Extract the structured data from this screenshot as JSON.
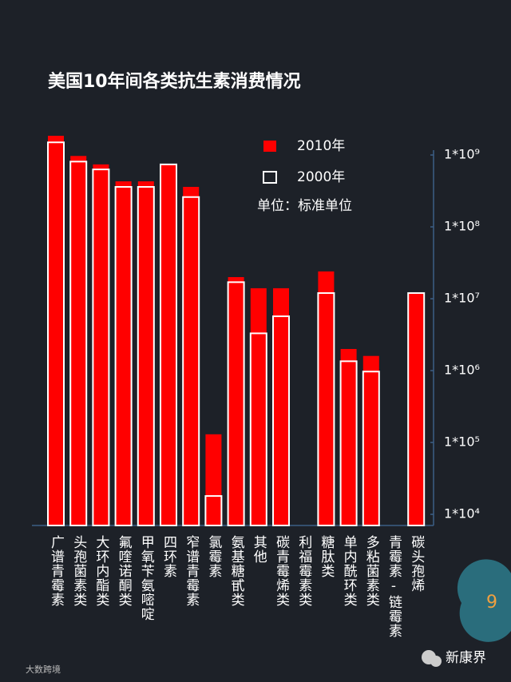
{
  "chart_data": {
    "type": "bar",
    "title": "美国10年间各类抗生素消费情况",
    "annotation": "单位：标准单位",
    "categories": [
      "广谱青霉素",
      "头孢菌素类",
      "大环内酯类",
      "氟喹诺酮类",
      "甲氧苄氨嘧啶",
      "四环素",
      "窄谱青霉素",
      "氯霉素",
      "氨基糖甙类",
      "其他",
      "碳青霉烯类",
      "利福霉素类",
      "糖肽类",
      "单内酰环类",
      "多粘菌素类",
      "青霉素-链霉素",
      "碳头孢烯"
    ],
    "series": [
      {
        "name": "2010年",
        "color": "#ff0000",
        "values": [
          1850000000,
          970000000,
          740000000,
          430000000,
          430000000,
          740000000,
          360000000,
          130000,
          20000000,
          14000000,
          14000000,
          null,
          24000000,
          2000000,
          1600000,
          null,
          12000000
        ]
      },
      {
        "name": "2000年",
        "color": "#ff0000",
        "stroke": "#ffffff",
        "values": [
          1500000000,
          810000000,
          630000000,
          360000000,
          360000000,
          740000000,
          260000000,
          18000,
          17000000,
          3300000,
          5700000,
          null,
          12000000,
          1350000,
          970000,
          null,
          12000000
        ]
      }
    ],
    "log_scale": true,
    "ylim": [
      7000,
      2000000000
    ],
    "yticks": [
      {
        "value": 10000,
        "label": "1*10⁴"
      },
      {
        "value": 100000,
        "label": "1*10⁵"
      },
      {
        "value": 1000000,
        "label": "1*10⁶"
      },
      {
        "value": 10000000,
        "label": "1*10⁷"
      },
      {
        "value": 100000000,
        "label": "1*10⁸"
      },
      {
        "value": 1000000000,
        "label": "1*10⁹"
      }
    ]
  },
  "page_number": "9",
  "brand": "新康界",
  "source": "大数跨境"
}
